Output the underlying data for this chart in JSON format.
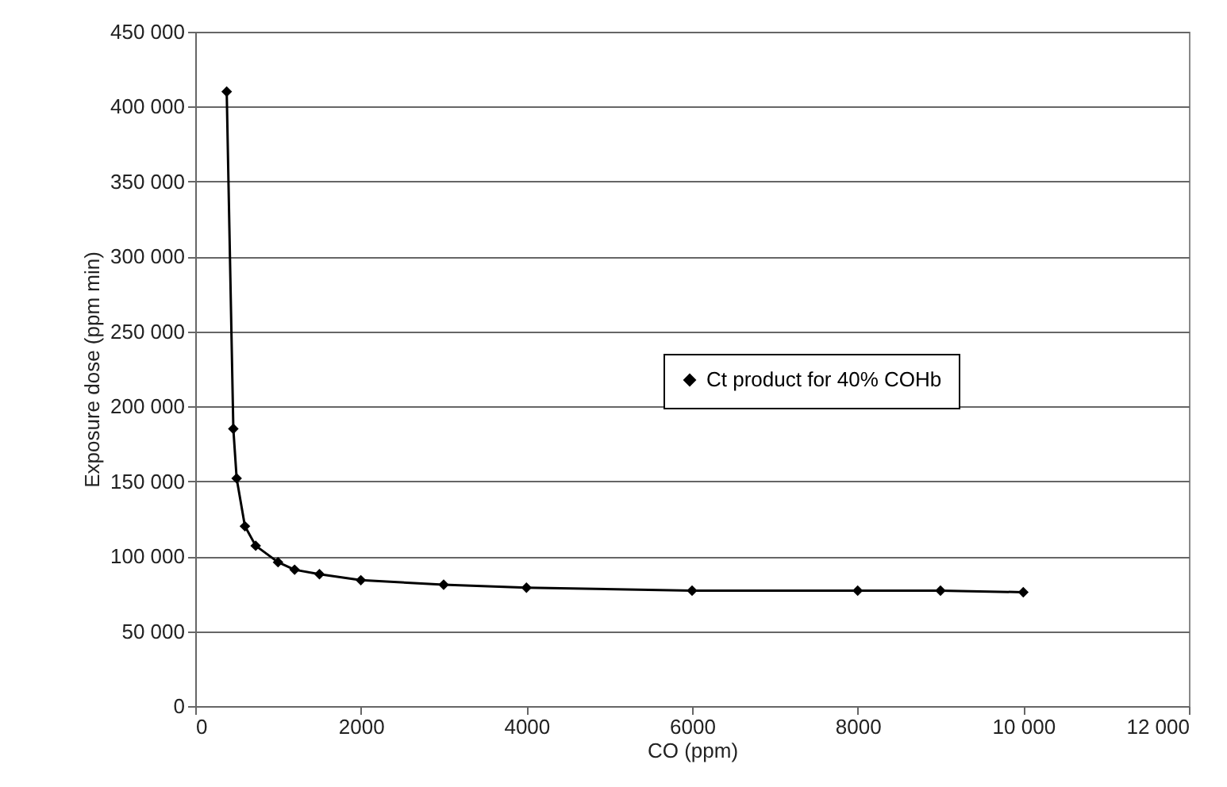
{
  "chart_data": {
    "type": "line",
    "xlabel": "CO (ppm)",
    "ylabel": "Exposure dose (ppm min)",
    "x": [
      380,
      460,
      500,
      600,
      730,
      1000,
      1200,
      1500,
      2000,
      3000,
      4000,
      6000,
      8000,
      9000,
      10000
    ],
    "series": [
      {
        "name": "Ct product for 40% COHb",
        "color": "#000000",
        "values": [
          410000,
          185000,
          152000,
          120000,
          107000,
          96000,
          91000,
          88000,
          84000,
          81000,
          79000,
          77000,
          77000,
          77000,
          76000
        ]
      }
    ],
    "xlim": [
      0,
      12000
    ],
    "xticks": [
      0,
      2000,
      4000,
      6000,
      8000,
      {
        "value": 10000,
        "label": "10 000"
      },
      {
        "value": 12000,
        "label": "12 000"
      }
    ],
    "ylim": [
      0,
      450000
    ],
    "yticks": [
      0,
      {
        "value": 50000,
        "label": "50 000"
      },
      {
        "value": 100000,
        "label": "100 000"
      },
      {
        "value": 150000,
        "label": "150 000"
      },
      {
        "value": 200000,
        "label": "200 000"
      },
      {
        "value": 250000,
        "label": "250 000"
      },
      {
        "value": 300000,
        "label": "300 000"
      },
      {
        "value": 350000,
        "label": "350 000"
      },
      {
        "value": 400000,
        "label": "400 000"
      },
      {
        "value": 450000,
        "label": "450 000"
      }
    ],
    "grid": "y",
    "legend": "right",
    "marker": "diamond",
    "line_style": "solid"
  }
}
